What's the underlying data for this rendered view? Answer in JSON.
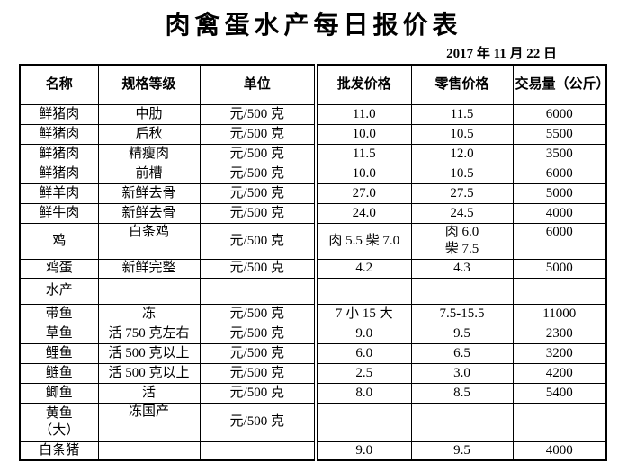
{
  "title": "肉禽蛋水产每日报价表",
  "date": "2017 年 11 月 22 日",
  "colors": {
    "text": "#000000",
    "border": "#000000",
    "background": "#ffffff"
  },
  "table": {
    "headers": [
      "名称",
      "规格等级",
      "单位",
      "批发价格",
      "零售价格",
      "交易量（公斤）"
    ],
    "rows": [
      {
        "cells": [
          "鲜猪肉",
          "中肋",
          "元/500 克",
          "11.0",
          "11.5",
          "6000"
        ]
      },
      {
        "cells": [
          "鲜猪肉",
          "后秋",
          "元/500 克",
          "10.0",
          "10.5",
          "5500"
        ]
      },
      {
        "cells": [
          "鲜猪肉",
          "精瘦肉",
          "元/500 克",
          "11.5",
          "12.0",
          "3500"
        ]
      },
      {
        "cells": [
          "鲜猪肉",
          "前槽",
          "元/500 克",
          "10.0",
          "10.5",
          "6000"
        ]
      },
      {
        "cells": [
          "鲜羊肉",
          "新鲜去骨",
          "元/500 克",
          "27.0",
          "27.5",
          "5000"
        ]
      },
      {
        "cells": [
          "鲜牛肉",
          "新鲜去骨",
          "元/500 克",
          "24.0",
          "24.5",
          "4000"
        ]
      },
      {
        "cells": [
          "鸡",
          "白条鸡",
          "元/500 克",
          "肉 5.5 柴 7.0",
          "肉 6.0\n柴 7.5",
          "6000"
        ]
      },
      {
        "cells": [
          "鸡蛋",
          "新鲜完整",
          "元/500 克",
          "4.2",
          "4.3",
          "5000"
        ]
      },
      {
        "cells": [
          "水产",
          "",
          "",
          "",
          "",
          ""
        ]
      },
      {
        "cells": [
          "带鱼",
          "冻",
          "元/500 克",
          "7 小 15 大",
          "7.5-15.5",
          "11000"
        ]
      },
      {
        "cells": [
          "草鱼",
          "活 750 克左右",
          "元/500 克",
          "9.0",
          "9.5",
          "2300"
        ]
      },
      {
        "cells": [
          "鲤鱼",
          "活 500 克以上",
          "元/500 克",
          "6.0",
          "6.5",
          "3200"
        ]
      },
      {
        "cells": [
          "鲢鱼",
          "活 500 克以上",
          "元/500 克",
          "2.5",
          "3.0",
          "4200"
        ]
      },
      {
        "cells": [
          "鲫鱼",
          "活",
          "元/500 克",
          "8.0",
          "8.5",
          "5400"
        ]
      },
      {
        "cells": [
          "黄鱼\n（大）",
          "冻国产",
          "元/500 克",
          "",
          "",
          ""
        ]
      },
      {
        "cells": [
          "白条猪",
          "",
          "",
          "9.0",
          "9.5",
          "4000"
        ]
      }
    ]
  }
}
